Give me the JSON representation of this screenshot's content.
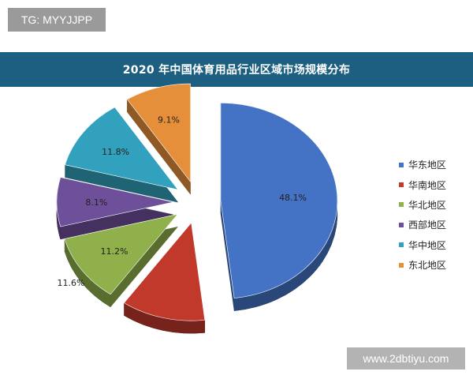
{
  "watermark_top_left": "TG: MYYJJPP",
  "watermark_bottom_right": "www.2dbtiyu.com",
  "chart_data": {
    "type": "pie",
    "title": "2020 年中国体育用品行业区域市场规模分布",
    "labels": [
      "华东地区",
      "华南地区",
      "华北地区",
      "西部地区",
      "华中地区",
      "东北地区"
    ],
    "values": [
      48.1,
      11.6,
      11.2,
      8.1,
      11.8,
      9.1
    ],
    "value_labels": [
      "48.1%",
      "11.6%",
      "11.2%",
      "8.1%",
      "11.8%",
      "9.1%"
    ],
    "colors": [
      "#4472c4",
      "#c0392b",
      "#8fb04a",
      "#6e4f9a",
      "#31a1bd",
      "#e58f3a"
    ],
    "exploded": true,
    "three_d": true,
    "legend_position": "right"
  }
}
